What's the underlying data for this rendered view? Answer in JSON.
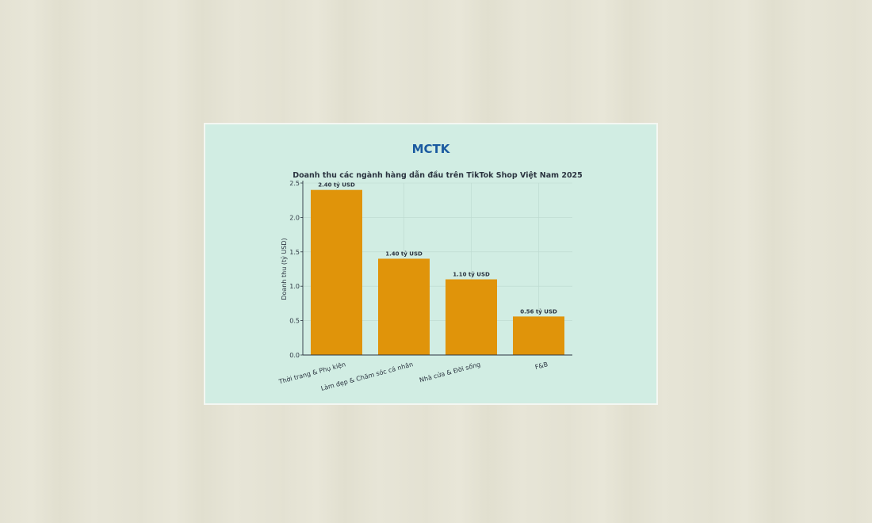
{
  "brand": "MCTK",
  "colors": {
    "bar": "#e0940a",
    "brand": "#1a5aa0",
    "text": "#2b3440"
  },
  "chart_data": {
    "type": "bar",
    "title": "Doanh thu các ngành hàng dẫn đầu trên TikTok Shop Việt Nam 2025",
    "xlabel": "",
    "ylabel": "Doanh thu (tỷ USD)",
    "ylim": [
      0,
      2.5
    ],
    "yticks": [
      "0.0",
      "0.5",
      "1.0",
      "1.5",
      "2.0",
      "2.5"
    ],
    "grid": true,
    "categories": [
      "Thời trang & Phụ kiện",
      "Làm đẹp & Chăm sóc cá nhân",
      "Nhà cửa & Đời sống",
      "F&B"
    ],
    "values": [
      2.4,
      1.4,
      1.1,
      0.56
    ],
    "data_labels": [
      "2.40 tỷ USD",
      "1.40 tỷ USD",
      "1.10 tỷ USD",
      "0.56 tỷ USD"
    ]
  }
}
